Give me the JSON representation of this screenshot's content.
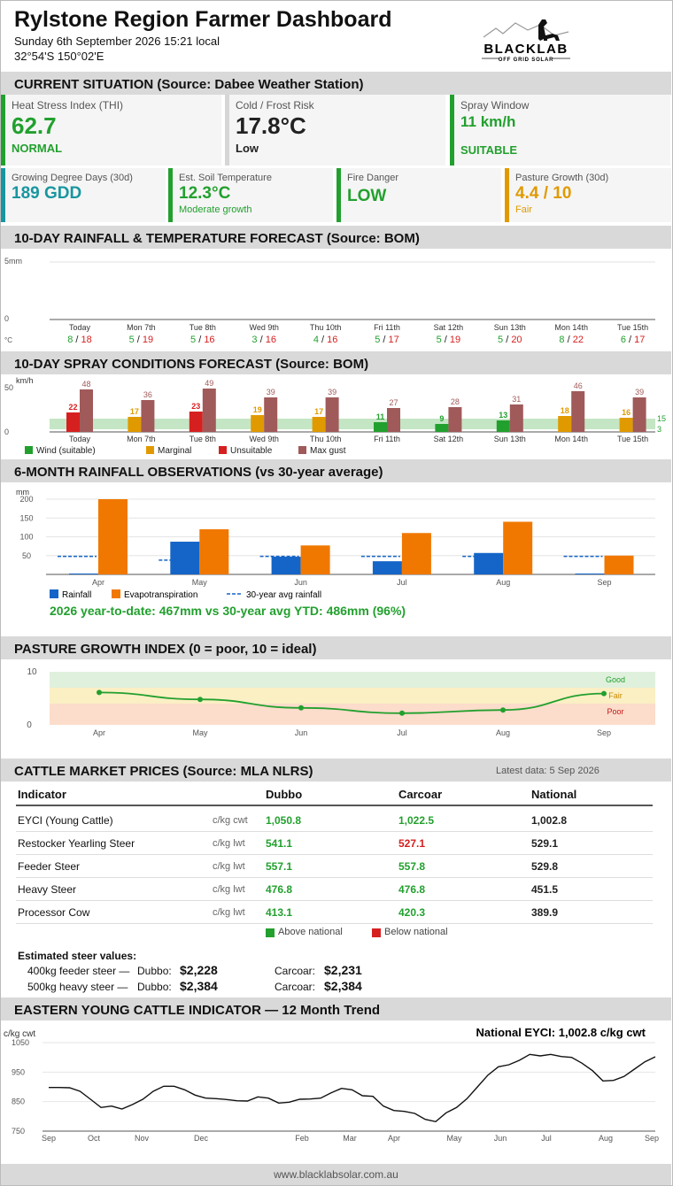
{
  "header": {
    "title": "Rylstone Region Farmer Dashboard",
    "datetime": "Sunday 6th September 2026  15:21 local",
    "coords": "32°54'S 150°02'E",
    "logo_text": "BLACKLAB",
    "logo_sub": "OFF GRID SOLAR"
  },
  "sections": {
    "current": "CURRENT SITUATION  (Source: Dabee Weather Station)",
    "rain_temp": "10-DAY RAINFALL & TEMPERATURE FORECAST  (Source: BOM)",
    "spray": "10-DAY SPRAY CONDITIONS FORECAST  (Source: BOM)",
    "rain_obs": "6-MONTH RAINFALL OBSERVATIONS  (vs 30-year average)",
    "pasture": "PASTURE GROWTH INDEX  (0 = poor, 10 = ideal)",
    "cattle": "CATTLE MARKET PRICES  (Source: MLA NLRS)",
    "eyci": "EASTERN YOUNG CATTLE INDICATOR — 12 Month Trend"
  },
  "cards_top": [
    {
      "label": "Heat Stress Index (THI)",
      "value": "62.7",
      "status": "NORMAL",
      "color": "#22a02e"
    },
    {
      "label": "Cold / Frost Risk",
      "value": "17.8°C",
      "status": "Low",
      "color": "#d6d6d6"
    },
    {
      "label": "Spray Window",
      "value": "11 km/h",
      "status": "SUITABLE",
      "color": "#22a02e"
    }
  ],
  "cards_bottom": [
    {
      "label": "Growing Degree Days (30d)",
      "value": "189 GDD",
      "status": "",
      "color": "#1896a0"
    },
    {
      "label": "Est. Soil Temperature",
      "value": "12.3°C",
      "status": "Moderate growth",
      "color": "#22a02e"
    },
    {
      "label": "Fire Danger",
      "value": "LOW",
      "status": "",
      "color": "#22a02e"
    },
    {
      "label": "Pasture Growth (30d)",
      "value": "4.4 / 10",
      "status": "Fair",
      "color": "#e09a00"
    }
  ],
  "forecast": {
    "ylabels": [
      "5mm",
      "0"
    ],
    "unit": "°C",
    "days": [
      "Today",
      "Mon 7th",
      "Tue 8th",
      "Wed 9th",
      "Thu 10th",
      "Fri 11th",
      "Sat 12th",
      "Sun 13th",
      "Mon 14th",
      "Tue 15th"
    ],
    "min": [
      "8",
      "5",
      "5",
      "3",
      "4",
      "5",
      "5",
      "5",
      "8",
      "6"
    ],
    "max": [
      "18",
      "19",
      "16",
      "16",
      "16",
      "17",
      "19",
      "20",
      "22",
      "17"
    ]
  },
  "spray": {
    "ylabel": "km/h",
    "ticks": [
      "50",
      "0"
    ],
    "band_labels": [
      "15",
      "3"
    ],
    "wind": [
      22,
      17,
      23,
      19,
      17,
      11,
      9,
      13,
      18,
      16
    ],
    "gust": [
      48,
      36,
      49,
      39,
      39,
      27,
      28,
      31,
      46,
      39
    ],
    "status": [
      "red",
      "orange",
      "red",
      "orange",
      "orange",
      "green",
      "green",
      "green",
      "orange",
      "orange"
    ],
    "legend": [
      "Wind (suitable)",
      "Marginal",
      "Unsuitable",
      "Max gust"
    ]
  },
  "chart_data": [
    {
      "type": "bar",
      "title": "6-MONTH RAINFALL OBSERVATIONS  (vs 30-year average)",
      "ylabel": "mm",
      "ylim": [
        0,
        200
      ],
      "yticks": [
        "200",
        "150",
        "100",
        "50"
      ],
      "categories": [
        "Apr",
        "May",
        "Jun",
        "Jul",
        "Aug",
        "Sep"
      ],
      "series": [
        {
          "name": "Rainfall",
          "values": [
            0,
            87,
            47,
            35,
            57,
            0
          ],
          "color": "#1565c8"
        },
        {
          "name": "Evapotranspiration",
          "values": [
            200,
            120,
            77,
            110,
            140,
            50
          ],
          "color": "#f07800"
        },
        {
          "name": "30-year avg rainfall",
          "values": [
            48,
            38,
            48,
            48,
            48,
            48
          ],
          "color": "#1565c8"
        }
      ],
      "summary": "2026 year-to-date: 467mm  vs  30-year avg YTD: 486mm  (96%)"
    },
    {
      "type": "line",
      "title": "PASTURE GROWTH INDEX  (0 = poor, 10 = ideal)",
      "ylim": [
        0,
        10
      ],
      "yticks": [
        "10",
        "0"
      ],
      "categories": [
        "Apr",
        "May",
        "Jun",
        "Jul",
        "Aug",
        "Sep"
      ],
      "series": [
        {
          "name": "Pasture growth",
          "values": [
            6.1,
            4.8,
            3.2,
            2.2,
            2.8,
            5.9
          ]
        }
      ],
      "bands": [
        "Good",
        "Fair",
        "Poor"
      ]
    },
    {
      "type": "line",
      "title": "EASTERN YOUNG CATTLE INDICATOR — 12 Month Trend",
      "ylabel": "c/kg cwt",
      "ylim": [
        750,
        1050
      ],
      "yticks": [
        "1050",
        "950",
        "850",
        "750"
      ],
      "xticks": [
        "Sep",
        "Oct",
        "Nov",
        "Dec",
        "Feb",
        "Mar",
        "Apr",
        "May",
        "Jun",
        "Jul",
        "Aug",
        "Sep"
      ],
      "annotation": "National EYCI: 1,002.8 c/kg cwt",
      "values": [
        898,
        898,
        897,
        885,
        858,
        830,
        835,
        825,
        840,
        858,
        885,
        902,
        902,
        890,
        872,
        862,
        860,
        857,
        853,
        852,
        866,
        862,
        845,
        848,
        858,
        859,
        862,
        880,
        895,
        890,
        870,
        868,
        835,
        820,
        817,
        810,
        790,
        782,
        812,
        830,
        860,
        900,
        940,
        968,
        975,
        990,
        1010,
        1005,
        1010,
        1003,
        1000,
        980,
        955,
        920,
        922,
        935,
        960,
        985,
        1002
      ]
    }
  ],
  "cattle": {
    "latest": "Latest data: 5 Sep 2026",
    "headers": [
      "Indicator",
      "Dubbo",
      "Carcoar",
      "National"
    ],
    "rows": [
      {
        "name": "EYCI (Young Cattle)",
        "unit": "c/kg cwt",
        "dubbo": "1,050.8",
        "carcoar": "1,022.5",
        "national": "1,002.8",
        "dc": "#22a02e",
        "cc": "#22a02e"
      },
      {
        "name": "Restocker Yearling Steer",
        "unit": "c/kg lwt",
        "dubbo": "541.1",
        "carcoar": "527.1",
        "national": "529.1",
        "dc": "#22a02e",
        "cc": "#d62020"
      },
      {
        "name": "Feeder Steer",
        "unit": "c/kg lwt",
        "dubbo": "557.1",
        "carcoar": "557.8",
        "national": "529.8",
        "dc": "#22a02e",
        "cc": "#22a02e"
      },
      {
        "name": "Heavy Steer",
        "unit": "c/kg lwt",
        "dubbo": "476.8",
        "carcoar": "476.8",
        "national": "451.5",
        "dc": "#22a02e",
        "cc": "#22a02e"
      },
      {
        "name": "Processor Cow",
        "unit": "c/kg lwt",
        "dubbo": "413.1",
        "carcoar": "420.3",
        "national": "389.9",
        "dc": "#22a02e",
        "cc": "#22a02e"
      }
    ],
    "legend_above": "Above national",
    "legend_below": "Below national",
    "steer_title": "Estimated steer values:",
    "steers": [
      {
        "label": "400kg feeder steer —",
        "dubbo_lbl": "Dubbo:",
        "dubbo": "$2,228",
        "carcoar_lbl": "Carcoar:",
        "carcoar": "$2,231"
      },
      {
        "label": "500kg heavy steer —",
        "dubbo_lbl": "Dubbo:",
        "dubbo": "$2,384",
        "carcoar_lbl": "Carcoar:",
        "carcoar": "$2,384"
      }
    ]
  },
  "footer": "www.blacklabsolar.com.au"
}
